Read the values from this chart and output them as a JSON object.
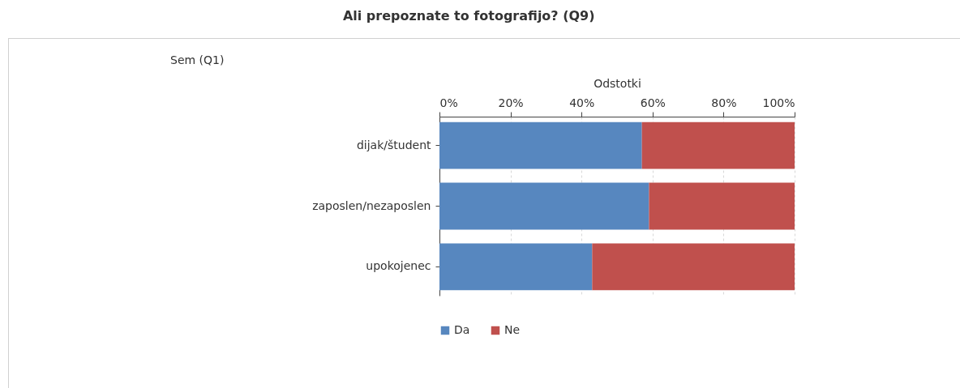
{
  "chart_data": {
    "type": "bar",
    "title": "Ali prepoznate to fotografijo? (Q9)",
    "xlabel": "Odstotki",
    "annotations": [
      "Sem (Q1)"
    ],
    "categories": [
      "dijak/študent",
      "zaposlen/nezaposlen",
      "upokojenec"
    ],
    "series": [
      {
        "name": "Da",
        "color": "#5787bf",
        "values": [
          57,
          59,
          43
        ]
      },
      {
        "name": "Ne",
        "color": "#c0504d",
        "values": [
          43,
          41,
          57
        ]
      }
    ],
    "stacked": true,
    "orientation": "horizontal",
    "xlim": [
      0,
      100
    ],
    "xticks": [
      {
        "value": 0,
        "label": "0%"
      },
      {
        "value": 20,
        "label": "20%"
      },
      {
        "value": 40,
        "label": "40%"
      },
      {
        "value": 60,
        "label": "60%"
      },
      {
        "value": 80,
        "label": "80%"
      },
      {
        "value": 100,
        "label": "100%"
      }
    ],
    "grid": "x",
    "legend": "bottom"
  }
}
